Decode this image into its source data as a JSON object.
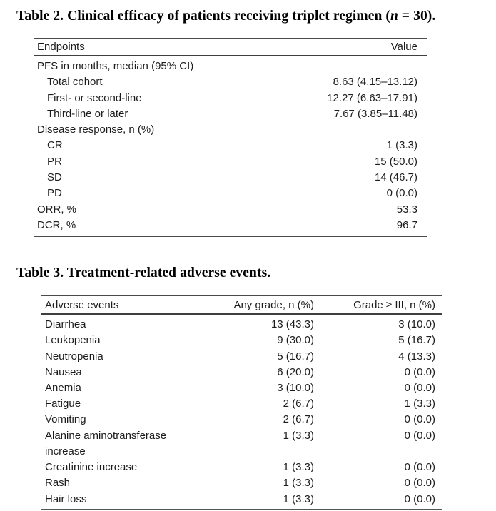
{
  "colors": {
    "page_background": "#ffffff",
    "text": "#1c1c1c",
    "title_text": "#000000",
    "rule": "#3f3f3f"
  },
  "table2": {
    "title": {
      "pre": "Table 2. Clinical efficacy of patients receiving triplet regimen (",
      "n": "n",
      "post": " = 30)."
    },
    "columns": {
      "endpoints": "Endpoints",
      "value": "Value"
    },
    "rows": [
      {
        "label": "PFS in months, median (95% CI)",
        "value": "",
        "indent": 0
      },
      {
        "label": "Total cohort",
        "value": "8.63 (4.15–13.12)",
        "indent": 1
      },
      {
        "label": "First- or second-line",
        "value": "12.27 (6.63–17.91)",
        "indent": 1
      },
      {
        "label": "Third-line or later",
        "value": "7.67 (3.85–11.48)",
        "indent": 1
      },
      {
        "label": "Disease response, n (%)",
        "value": "",
        "indent": 0
      },
      {
        "label": "CR",
        "value": "1 (3.3)",
        "indent": 1
      },
      {
        "label": "PR",
        "value": "15 (50.0)",
        "indent": 1
      },
      {
        "label": "SD",
        "value": "14 (46.7)",
        "indent": 1
      },
      {
        "label": "PD",
        "value": "0 (0.0)",
        "indent": 1
      },
      {
        "label": "ORR, %",
        "value": "53.3",
        "indent": 0
      },
      {
        "label": "DCR, %",
        "value": "96.7",
        "indent": 0
      }
    ]
  },
  "table3": {
    "title": "Table 3. Treatment-related adverse events.",
    "columns": {
      "event": "Adverse events",
      "any_grade": "Any grade, n (%)",
      "grade_3plus": "Grade ≥ III, n (%)"
    },
    "rows": [
      {
        "event": "Diarrhea",
        "any_grade": "13 (43.3)",
        "grade_3plus": "3 (10.0)"
      },
      {
        "event": "Leukopenia",
        "any_grade": "9 (30.0)",
        "grade_3plus": "5 (16.7)"
      },
      {
        "event": "Neutropenia",
        "any_grade": "5 (16.7)",
        "grade_3plus": "4 (13.3)"
      },
      {
        "event": "Nausea",
        "any_grade": "6 (20.0)",
        "grade_3plus": "0 (0.0)"
      },
      {
        "event": "Anemia",
        "any_grade": "3 (10.0)",
        "grade_3plus": "0 (0.0)"
      },
      {
        "event": "Fatigue",
        "any_grade": "2 (6.7)",
        "grade_3plus": "1 (3.3)"
      },
      {
        "event": "Vomiting",
        "any_grade": "2 (6.7)",
        "grade_3plus": "0 (0.0)"
      },
      {
        "event": "Alanine aminotransferase increase",
        "any_grade": "1 (3.3)",
        "grade_3plus": "0 (0.0)"
      },
      {
        "event": "Creatinine increase",
        "any_grade": "1 (3.3)",
        "grade_3plus": "0 (0.0)"
      },
      {
        "event": "Rash",
        "any_grade": "1 (3.3)",
        "grade_3plus": "0 (0.0)"
      },
      {
        "event": "Hair loss",
        "any_grade": "1 (3.3)",
        "grade_3plus": "0 (0.0)"
      }
    ]
  }
}
